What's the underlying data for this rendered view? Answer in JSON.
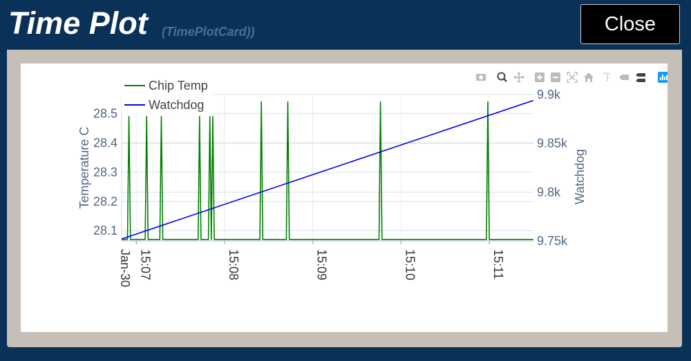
{
  "window": {
    "title": "Time Plot",
    "subtitle": "(TimePlotCard))",
    "close_label": "Close"
  },
  "modebar": {
    "icons": [
      "camera-icon",
      "zoom-icon",
      "pan-icon",
      "zoom-in-icon",
      "zoom-out-icon",
      "autoscale-icon",
      "home-icon",
      "spike-lines-icon",
      "hover-closest-icon",
      "hover-compare-icon",
      "plotly-logo-icon"
    ]
  },
  "chart_data": {
    "type": "line",
    "x_axis": {
      "type": "date",
      "range": [
        "2023-01-30 15:06:50",
        "2023-01-30 15:11:30"
      ],
      "tick_values": [
        "2023-01-30 15:07:00",
        "2023-01-30 15:08:00",
        "2023-01-30 15:09:00",
        "2023-01-30 15:10:00",
        "2023-01-30 15:11:00"
      ],
      "tick_labels": [
        "15:07",
        "15:08",
        "15:09",
        "15:10",
        "15:11"
      ],
      "date_label": "Jan-30"
    },
    "y_axis_left": {
      "title": "Temperature C",
      "range": [
        28.065,
        28.565
      ],
      "tick_values": [
        28.1,
        28.2,
        28.3,
        28.4,
        28.5
      ],
      "tick_labels": [
        "28.1",
        "28.2",
        "28.3",
        "28.4",
        "28.5"
      ],
      "grid": true
    },
    "y_axis_right": {
      "title": "Watchdog",
      "range": [
        9750,
        9900
      ],
      "tick_values": [
        9750,
        9800,
        9850,
        9900
      ],
      "tick_labels": [
        "9.75k",
        "9.8k",
        "9.85k",
        "9.9k"
      ],
      "grid": true
    },
    "legend": {
      "placement": "top-left"
    },
    "series": [
      {
        "name": "Chip Temp",
        "color": "#008000",
        "axis": "left",
        "x": [
          "2023-01-30 15:06:50",
          "2023-01-30 15:06:54",
          "2023-01-30 15:06:55",
          "2023-01-30 15:06:56",
          "2023-01-30 15:07:06",
          "2023-01-30 15:07:07",
          "2023-01-30 15:07:08",
          "2023-01-30 15:07:16",
          "2023-01-30 15:07:17",
          "2023-01-30 15:07:18",
          "2023-01-30 15:07:42",
          "2023-01-30 15:07:43",
          "2023-01-30 15:07:44",
          "2023-01-30 15:07:49",
          "2023-01-30 15:07:50",
          "2023-01-30 15:07:51",
          "2023-01-30 15:07:52",
          "2023-01-30 15:07:53",
          "2023-01-30 15:08:24",
          "2023-01-30 15:08:25",
          "2023-01-30 15:08:26",
          "2023-01-30 15:08:42",
          "2023-01-30 15:08:43",
          "2023-01-30 15:08:44",
          "2023-01-30 15:09:45",
          "2023-01-30 15:09:46",
          "2023-01-30 15:09:47",
          "2023-01-30 15:10:58",
          "2023-01-30 15:10:59",
          "2023-01-30 15:11:00",
          "2023-01-30 15:11:30"
        ],
        "y": [
          28.07,
          28.07,
          28.49,
          28.07,
          28.07,
          28.49,
          28.07,
          28.07,
          28.49,
          28.07,
          28.07,
          28.49,
          28.07,
          28.07,
          28.49,
          28.07,
          28.49,
          28.07,
          28.07,
          28.54,
          28.07,
          28.07,
          28.54,
          28.07,
          28.07,
          28.54,
          28.07,
          28.07,
          28.54,
          28.07,
          28.07
        ]
      },
      {
        "name": "Watchdog",
        "color": "#0000ee",
        "axis": "right",
        "x": [
          "2023-01-30 15:06:50",
          "2023-01-30 15:11:30"
        ],
        "y": [
          9752,
          9894
        ]
      }
    ]
  }
}
